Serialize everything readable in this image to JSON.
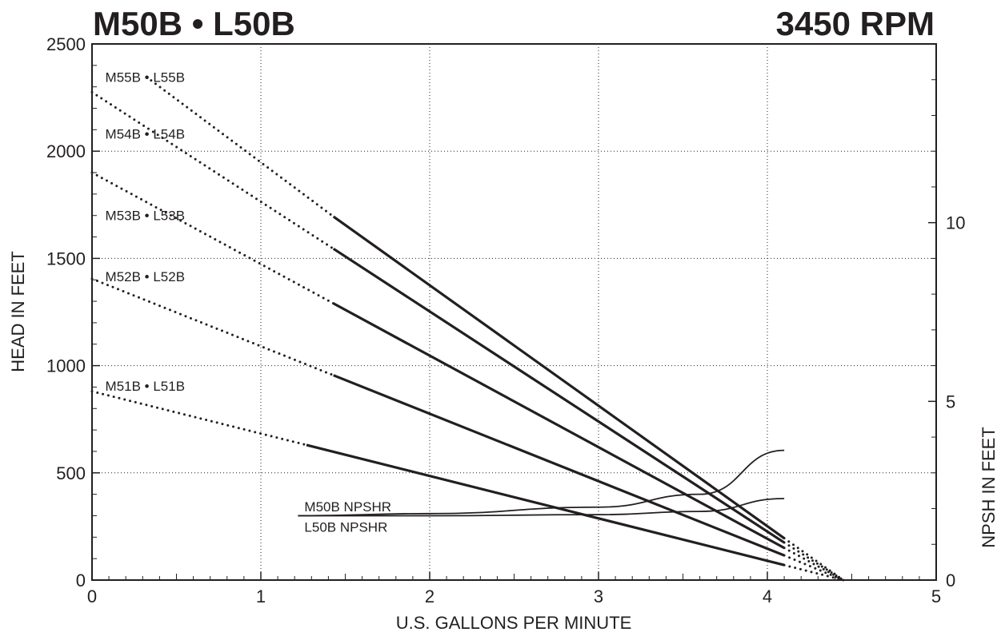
{
  "chart_data": {
    "type": "line",
    "title": "M50B • L50B",
    "subtitle": "3450 RPM",
    "xlabel": "U.S. GALLONS PER MINUTE",
    "ylabel": "HEAD IN FEET",
    "y2label": "NPSH IN FEET",
    "xlim": [
      0,
      5
    ],
    "ylim": [
      0,
      2500
    ],
    "y2lim": [
      0,
      15
    ],
    "xticks": [
      "0",
      "1",
      "2",
      "3",
      "4",
      "5"
    ],
    "yticks": [
      "0",
      "500",
      "1000",
      "1500",
      "2000",
      "2500"
    ],
    "y2ticks": [
      "0",
      "5",
      "10"
    ],
    "grid": true,
    "series": [
      {
        "name": "M55B • L55B",
        "label_at": [
          0.05,
          2345
        ],
        "dotted": [
          [
            0.35,
            2330
          ],
          [
            1.43,
            1695
          ]
        ],
        "solid": [
          [
            1.43,
            1695
          ],
          [
            4.1,
            195
          ]
        ],
        "tail": [
          [
            4.1,
            195
          ],
          [
            4.45,
            0
          ]
        ]
      },
      {
        "name": "M54B • L54B",
        "label_at": [
          0.05,
          2080
        ],
        "dotted": [
          [
            0,
            2275
          ],
          [
            1.43,
            1545
          ]
        ],
        "solid": [
          [
            1.43,
            1545
          ],
          [
            4.1,
            175
          ]
        ],
        "tail": [
          [
            4.1,
            175
          ],
          [
            4.45,
            0
          ]
        ]
      },
      {
        "name": "M53B • L53B",
        "label_at": [
          0.05,
          1700
        ],
        "dotted": [
          [
            0,
            1900
          ],
          [
            1.43,
            1290
          ]
        ],
        "solid": [
          [
            1.43,
            1290
          ],
          [
            4.1,
            150
          ]
        ],
        "tail": [
          [
            4.1,
            150
          ],
          [
            4.45,
            0
          ]
        ]
      },
      {
        "name": "M52B • L52B",
        "label_at": [
          0.05,
          1415
        ],
        "dotted": [
          [
            0,
            1405
          ],
          [
            1.43,
            955
          ]
        ],
        "solid": [
          [
            1.43,
            955
          ],
          [
            4.1,
            115
          ]
        ],
        "tail": [
          [
            4.1,
            115
          ],
          [
            4.45,
            0
          ]
        ]
      },
      {
        "name": "M51B • L51B",
        "label_at": [
          0.05,
          905
        ],
        "dotted": [
          [
            0,
            880
          ],
          [
            1.27,
            630
          ]
        ],
        "solid": [
          [
            1.27,
            630
          ],
          [
            4.1,
            70
          ]
        ],
        "tail": [
          [
            4.1,
            70
          ],
          [
            4.45,
            0
          ]
        ]
      }
    ],
    "npsh_series": [
      {
        "name": "M50B NPSHR",
        "label_at": [
          1.22,
          320
        ],
        "points": [
          [
            1.22,
            300
          ],
          [
            2.0,
            310
          ],
          [
            3.0,
            340
          ],
          [
            3.6,
            400
          ],
          [
            4.1,
            605
          ]
        ]
      },
      {
        "name": "L50B NPSHR",
        "label_at": [
          1.22,
          225
        ],
        "points": [
          [
            1.22,
            300
          ],
          [
            2.0,
            300
          ],
          [
            3.0,
            305
          ],
          [
            3.6,
            320
          ],
          [
            4.1,
            380
          ]
        ]
      }
    ]
  }
}
